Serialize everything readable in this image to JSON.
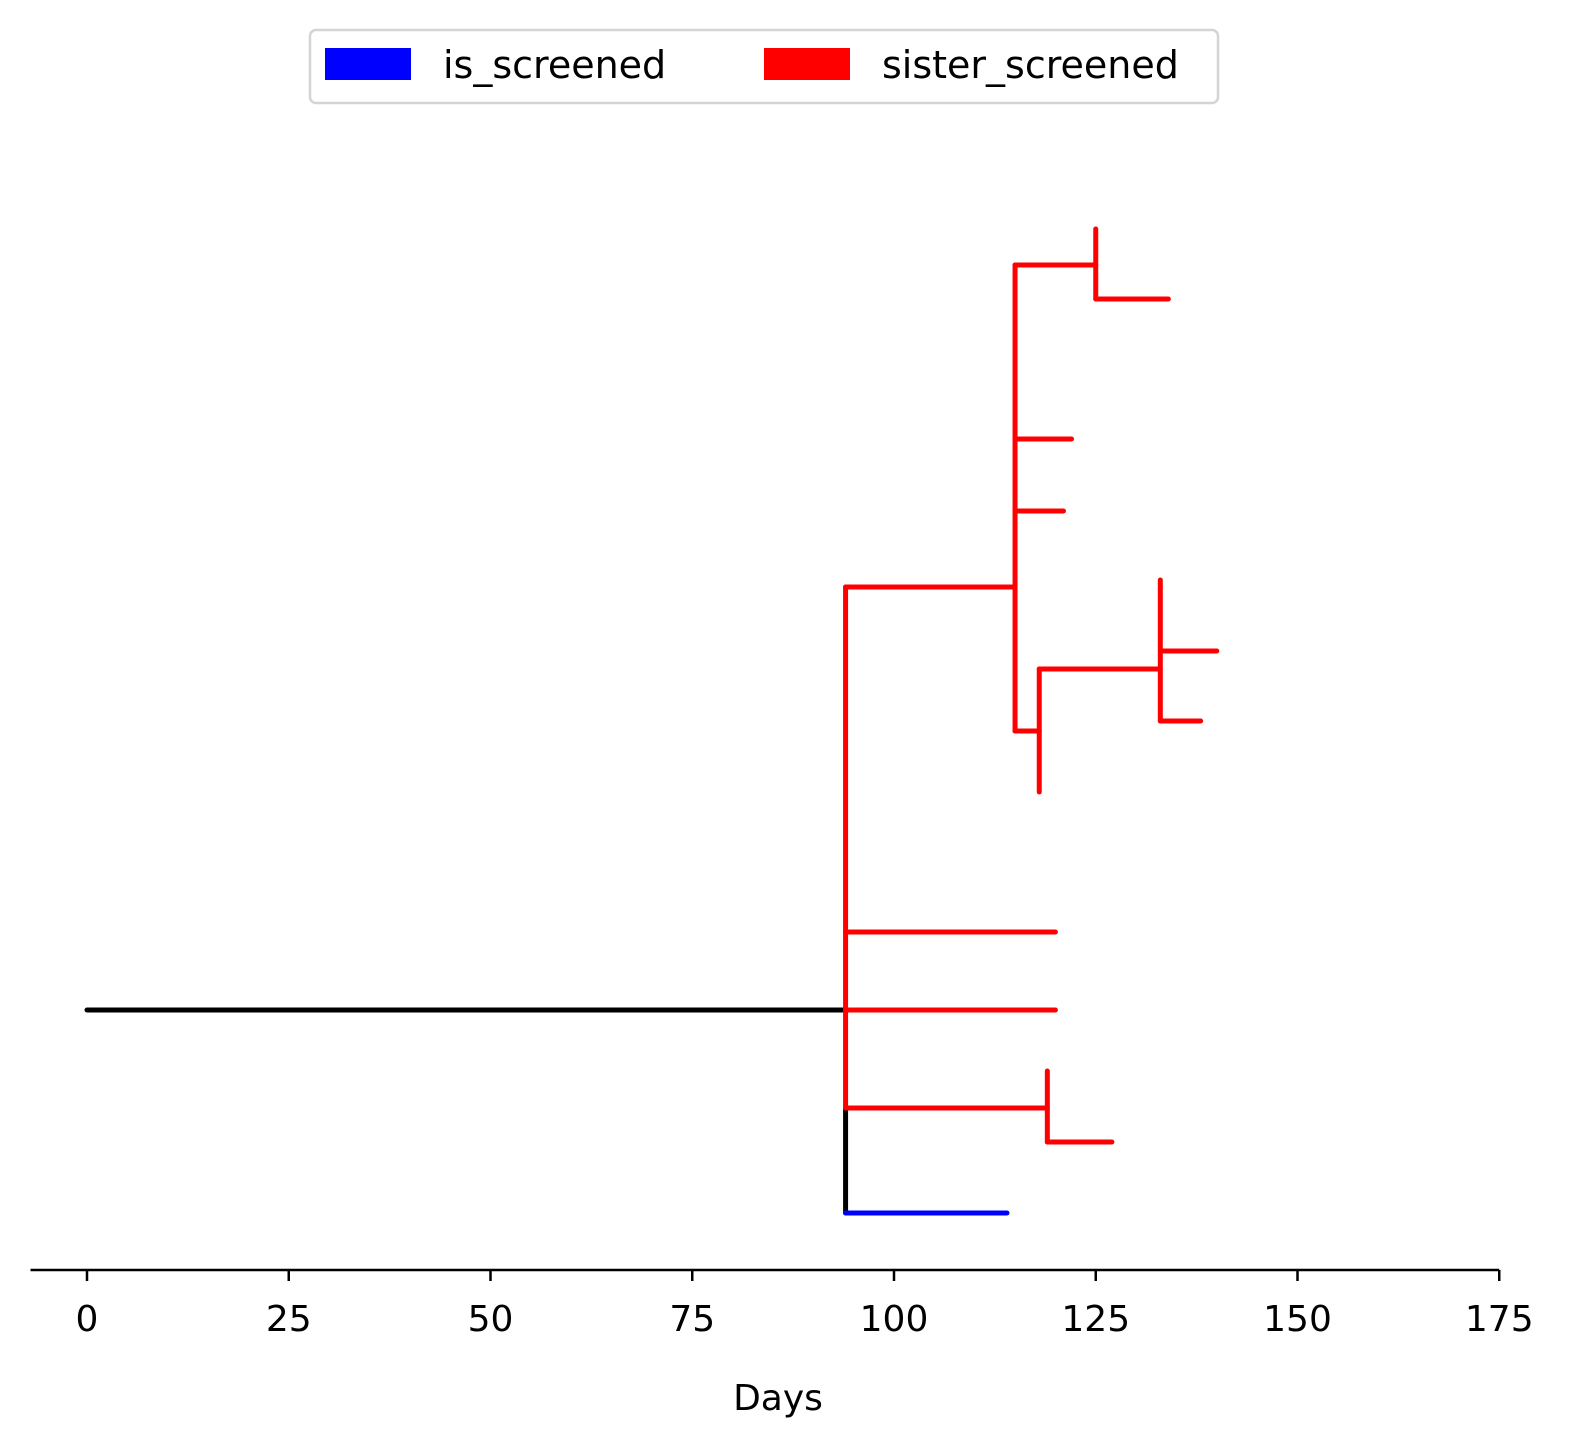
{
  "chart_data": {
    "type": "tree",
    "xlabel": "Days",
    "xlim": [
      -7,
      175
    ],
    "xticks": [
      0,
      25,
      50,
      75,
      100,
      125,
      150,
      175
    ],
    "colors": {
      "is_screened": "#0000ff",
      "sister_screened": "#ff0000",
      "unscreened": "#000000"
    },
    "legend": {
      "placement": "top-center",
      "entries": [
        {
          "label": "is_screened",
          "color": "#0000ff"
        },
        {
          "label": "sister_screened",
          "color": "#ff0000"
        }
      ]
    },
    "tips": {
      "a": 0,
      "b": 1,
      "c": 2,
      "d": 3,
      "e": 4,
      "f": 5,
      "g": 6,
      "h": 7,
      "i": 8,
      "j": 9,
      "k": 10,
      "l": 11,
      "m": 12,
      "n": 13
    },
    "segments": [
      {
        "category": "unscreened",
        "kind": "h",
        "y": "k",
        "x1": 0,
        "x2": 94
      },
      {
        "category": "unscreened",
        "kind": "v",
        "x": 94,
        "y1": "l",
        "y2": "n"
      },
      {
        "category": "is_screened",
        "kind": "h",
        "y": "n",
        "x1": 94,
        "x2": 114
      },
      {
        "category": "sister_screened",
        "kind": "v",
        "x": 94,
        "y1": "f",
        "y2": "l"
      },
      {
        "category": "sister_screened",
        "kind": "h",
        "y": "f",
        "x1": 94,
        "x2": 115
      },
      {
        "category": "sister_screened",
        "kind": "h",
        "y": "j",
        "x1": 94,
        "x2": 120
      },
      {
        "category": "sister_screened",
        "kind": "h",
        "y": "k",
        "x1": 94,
        "x2": 120
      },
      {
        "category": "sister_screened",
        "kind": "h",
        "y": "l",
        "x1": 94,
        "x2": 119
      },
      {
        "category": "sister_screened",
        "kind": "v",
        "x": 119,
        "y1": "l2",
        "y2": "m"
      },
      {
        "category": "sister_screened",
        "kind": "h",
        "y": "m",
        "x1": 119,
        "x2": 127
      },
      {
        "category": "sister_screened",
        "kind": "v",
        "x": 115,
        "y1": "b",
        "y2": "h"
      },
      {
        "category": "sister_screened",
        "kind": "h",
        "y": "b",
        "x1": 115,
        "x2": 125
      },
      {
        "category": "sister_screened",
        "kind": "v",
        "x": 125,
        "y1": "a",
        "y2": "c"
      },
      {
        "category": "sister_screened",
        "kind": "h",
        "y": "c",
        "x1": 125,
        "x2": 134
      },
      {
        "category": "sister_screened",
        "kind": "h",
        "y": "d",
        "x1": 115,
        "x2": 122
      },
      {
        "category": "sister_screened",
        "kind": "h",
        "y": "e",
        "x1": 115,
        "x2": 121
      },
      {
        "category": "sister_screened",
        "kind": "h",
        "y": "h",
        "x1": 115,
        "x2": 118
      },
      {
        "category": "sister_screened",
        "kind": "v",
        "x": 118,
        "y1": "g2",
        "y2": "i"
      },
      {
        "category": "sister_screened",
        "kind": "h",
        "y": "g2",
        "x1": 118,
        "x2": 133
      },
      {
        "category": "sister_screened",
        "kind": "v",
        "x": 133,
        "y1": "f2",
        "y2": "h2"
      },
      {
        "category": "sister_screened",
        "kind": "h",
        "y": "g",
        "x1": 133,
        "x2": 140
      },
      {
        "category": "sister_screened",
        "kind": "h",
        "y": "h2",
        "x1": 133,
        "x2": 138
      }
    ]
  }
}
